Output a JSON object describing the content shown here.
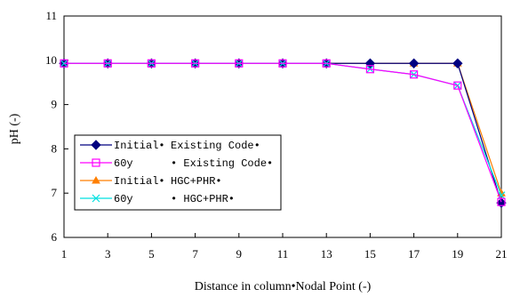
{
  "chart_data": {
    "type": "line",
    "title": "",
    "xlabel": "Distance in column•Nodal Point (-)",
    "ylabel": "pH (-)",
    "xlim": [
      1,
      21
    ],
    "ylim": [
      6,
      11
    ],
    "xticks": [
      "1",
      "3",
      "5",
      "7",
      "9",
      "11",
      "13",
      "15",
      "17",
      "19",
      "21"
    ],
    "yticks": [
      "6",
      "7",
      "8",
      "9",
      "10",
      "11"
    ],
    "grid": false,
    "legend_position": "left",
    "x": [
      1,
      3,
      5,
      7,
      9,
      11,
      13,
      15,
      17,
      19,
      21
    ],
    "series": [
      {
        "name_col1": "Initial•",
        "name_col2": "Existing Code•",
        "color": "#000080",
        "marker": "diamond",
        "values": [
          9.93,
          9.93,
          9.93,
          9.93,
          9.93,
          9.93,
          9.93,
          9.93,
          9.93,
          9.93,
          6.78
        ]
      },
      {
        "name_col1": "60y",
        "name_col2": "• Existing Code•",
        "color": "#ff00ff",
        "marker": "square",
        "values": [
          9.93,
          9.93,
          9.93,
          9.93,
          9.93,
          9.93,
          9.93,
          9.8,
          9.68,
          9.43,
          6.8
        ]
      },
      {
        "name_col1": "Initial•",
        "name_col2": "HGC+PHR•",
        "color": "#ff7f00",
        "marker": "triangle",
        "values": [
          9.93,
          9.93,
          9.93,
          9.93,
          9.93,
          9.93,
          9.93,
          9.93,
          9.93,
          9.93,
          7.0
        ]
      },
      {
        "name_col1": "60y",
        "name_col2": "• HGC+PHR•",
        "color": "#00e0e0",
        "marker": "x",
        "values": [
          9.93,
          9.93,
          9.93,
          9.93,
          9.93,
          9.93,
          9.93,
          9.8,
          9.68,
          9.43,
          6.95
        ]
      }
    ]
  }
}
